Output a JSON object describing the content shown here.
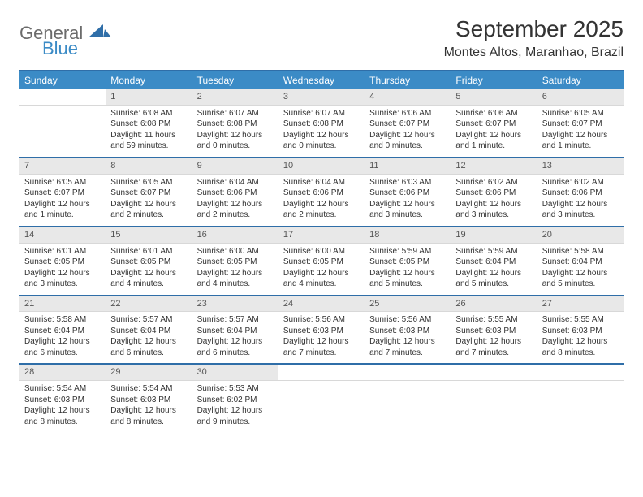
{
  "logo": {
    "general": "General",
    "blue": "Blue"
  },
  "title": "September 2025",
  "subtitle": "Montes Altos, Maranhao, Brazil",
  "colors": {
    "header_bg": "#3b8bc6",
    "header_text": "#ffffff",
    "rule": "#2f6ea8",
    "daynum_bg": "#e8e8e8",
    "text": "#333333",
    "logo_gray": "#6b6b6b",
    "logo_blue": "#3b8bc6"
  },
  "weekdays": [
    "Sunday",
    "Monday",
    "Tuesday",
    "Wednesday",
    "Thursday",
    "Friday",
    "Saturday"
  ],
  "weeks": [
    [
      null,
      {
        "n": "1",
        "sr": "6:08 AM",
        "ss": "6:08 PM",
        "dl": "11 hours and 59 minutes."
      },
      {
        "n": "2",
        "sr": "6:07 AM",
        "ss": "6:08 PM",
        "dl": "12 hours and 0 minutes."
      },
      {
        "n": "3",
        "sr": "6:07 AM",
        "ss": "6:08 PM",
        "dl": "12 hours and 0 minutes."
      },
      {
        "n": "4",
        "sr": "6:06 AM",
        "ss": "6:07 PM",
        "dl": "12 hours and 0 minutes."
      },
      {
        "n": "5",
        "sr": "6:06 AM",
        "ss": "6:07 PM",
        "dl": "12 hours and 1 minute."
      },
      {
        "n": "6",
        "sr": "6:05 AM",
        "ss": "6:07 PM",
        "dl": "12 hours and 1 minute."
      }
    ],
    [
      {
        "n": "7",
        "sr": "6:05 AM",
        "ss": "6:07 PM",
        "dl": "12 hours and 1 minute."
      },
      {
        "n": "8",
        "sr": "6:05 AM",
        "ss": "6:07 PM",
        "dl": "12 hours and 2 minutes."
      },
      {
        "n": "9",
        "sr": "6:04 AM",
        "ss": "6:06 PM",
        "dl": "12 hours and 2 minutes."
      },
      {
        "n": "10",
        "sr": "6:04 AM",
        "ss": "6:06 PM",
        "dl": "12 hours and 2 minutes."
      },
      {
        "n": "11",
        "sr": "6:03 AM",
        "ss": "6:06 PM",
        "dl": "12 hours and 3 minutes."
      },
      {
        "n": "12",
        "sr": "6:02 AM",
        "ss": "6:06 PM",
        "dl": "12 hours and 3 minutes."
      },
      {
        "n": "13",
        "sr": "6:02 AM",
        "ss": "6:06 PM",
        "dl": "12 hours and 3 minutes."
      }
    ],
    [
      {
        "n": "14",
        "sr": "6:01 AM",
        "ss": "6:05 PM",
        "dl": "12 hours and 3 minutes."
      },
      {
        "n": "15",
        "sr": "6:01 AM",
        "ss": "6:05 PM",
        "dl": "12 hours and 4 minutes."
      },
      {
        "n": "16",
        "sr": "6:00 AM",
        "ss": "6:05 PM",
        "dl": "12 hours and 4 minutes."
      },
      {
        "n": "17",
        "sr": "6:00 AM",
        "ss": "6:05 PM",
        "dl": "12 hours and 4 minutes."
      },
      {
        "n": "18",
        "sr": "5:59 AM",
        "ss": "6:05 PM",
        "dl": "12 hours and 5 minutes."
      },
      {
        "n": "19",
        "sr": "5:59 AM",
        "ss": "6:04 PM",
        "dl": "12 hours and 5 minutes."
      },
      {
        "n": "20",
        "sr": "5:58 AM",
        "ss": "6:04 PM",
        "dl": "12 hours and 5 minutes."
      }
    ],
    [
      {
        "n": "21",
        "sr": "5:58 AM",
        "ss": "6:04 PM",
        "dl": "12 hours and 6 minutes."
      },
      {
        "n": "22",
        "sr": "5:57 AM",
        "ss": "6:04 PM",
        "dl": "12 hours and 6 minutes."
      },
      {
        "n": "23",
        "sr": "5:57 AM",
        "ss": "6:04 PM",
        "dl": "12 hours and 6 minutes."
      },
      {
        "n": "24",
        "sr": "5:56 AM",
        "ss": "6:03 PM",
        "dl": "12 hours and 7 minutes."
      },
      {
        "n": "25",
        "sr": "5:56 AM",
        "ss": "6:03 PM",
        "dl": "12 hours and 7 minutes."
      },
      {
        "n": "26",
        "sr": "5:55 AM",
        "ss": "6:03 PM",
        "dl": "12 hours and 7 minutes."
      },
      {
        "n": "27",
        "sr": "5:55 AM",
        "ss": "6:03 PM",
        "dl": "12 hours and 8 minutes."
      }
    ],
    [
      {
        "n": "28",
        "sr": "5:54 AM",
        "ss": "6:03 PM",
        "dl": "12 hours and 8 minutes."
      },
      {
        "n": "29",
        "sr": "5:54 AM",
        "ss": "6:03 PM",
        "dl": "12 hours and 8 minutes."
      },
      {
        "n": "30",
        "sr": "5:53 AM",
        "ss": "6:02 PM",
        "dl": "12 hours and 9 minutes."
      },
      null,
      null,
      null,
      null
    ]
  ],
  "labels": {
    "sunrise": "Sunrise:",
    "sunset": "Sunset:",
    "daylight": "Daylight:"
  }
}
